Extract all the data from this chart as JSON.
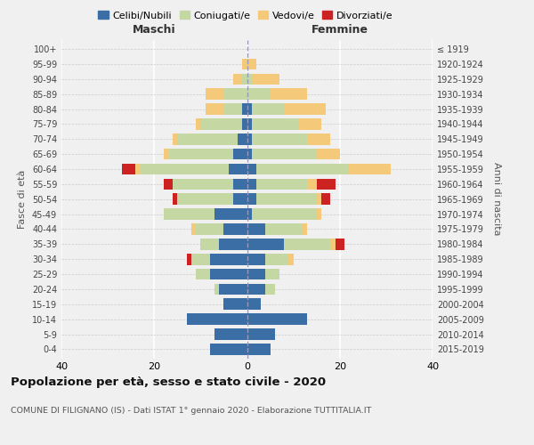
{
  "age_groups": [
    "0-4",
    "5-9",
    "10-14",
    "15-19",
    "20-24",
    "25-29",
    "30-34",
    "35-39",
    "40-44",
    "45-49",
    "50-54",
    "55-59",
    "60-64",
    "65-69",
    "70-74",
    "75-79",
    "80-84",
    "85-89",
    "90-94",
    "95-99",
    "100+"
  ],
  "birth_years": [
    "2015-2019",
    "2010-2014",
    "2005-2009",
    "2000-2004",
    "1995-1999",
    "1990-1994",
    "1985-1989",
    "1980-1984",
    "1975-1979",
    "1970-1974",
    "1965-1969",
    "1960-1964",
    "1955-1959",
    "1950-1954",
    "1945-1949",
    "1940-1944",
    "1935-1939",
    "1930-1934",
    "1925-1929",
    "1920-1924",
    "≤ 1919"
  ],
  "maschi": {
    "celibi": [
      8,
      7,
      13,
      5,
      6,
      8,
      8,
      6,
      5,
      7,
      3,
      3,
      4,
      3,
      2,
      1,
      1,
      0,
      0,
      0,
      0
    ],
    "coniugati": [
      0,
      0,
      0,
      0,
      1,
      3,
      4,
      4,
      6,
      11,
      12,
      13,
      19,
      14,
      13,
      9,
      4,
      5,
      1,
      0,
      0
    ],
    "vedovi": [
      0,
      0,
      0,
      0,
      0,
      0,
      0,
      0,
      1,
      0,
      0,
      0,
      1,
      1,
      1,
      1,
      4,
      4,
      2,
      1,
      0
    ],
    "divorziati": [
      0,
      0,
      0,
      0,
      0,
      0,
      1,
      0,
      0,
      0,
      1,
      2,
      3,
      0,
      0,
      0,
      0,
      0,
      0,
      0,
      0
    ]
  },
  "femmine": {
    "nubili": [
      5,
      6,
      13,
      3,
      4,
      4,
      4,
      8,
      4,
      1,
      2,
      2,
      2,
      1,
      1,
      1,
      1,
      0,
      0,
      0,
      0
    ],
    "coniugate": [
      0,
      0,
      0,
      0,
      2,
      3,
      5,
      10,
      8,
      14,
      13,
      11,
      20,
      14,
      12,
      10,
      7,
      5,
      1,
      0,
      0
    ],
    "vedove": [
      0,
      0,
      0,
      0,
      0,
      0,
      1,
      1,
      1,
      1,
      1,
      2,
      9,
      5,
      5,
      5,
      9,
      8,
      6,
      2,
      0
    ],
    "divorziate": [
      0,
      0,
      0,
      0,
      0,
      0,
      0,
      2,
      0,
      0,
      2,
      4,
      0,
      0,
      0,
      0,
      0,
      0,
      0,
      0,
      0
    ]
  },
  "colors": {
    "celibi": "#3a6ea5",
    "coniugati": "#c5d8a4",
    "vedovi": "#f5c97a",
    "divorziati": "#cc2222"
  },
  "xlim": 40,
  "title": "Popolazione per età, sesso e stato civile - 2020",
  "subtitle": "COMUNE DI FILIGNANO (IS) - Dati ISTAT 1° gennaio 2020 - Elaborazione TUTTITALIA.IT",
  "ylabel_left": "Fasce di età",
  "ylabel_right": "Anni di nascita",
  "xlabel_maschi": "Maschi",
  "xlabel_femmine": "Femmine",
  "legend_labels": [
    "Celibi/Nubili",
    "Coniugati/e",
    "Vedovi/e",
    "Divorziati/e"
  ],
  "bg_color": "#f0f0f0",
  "bar_height": 0.75
}
